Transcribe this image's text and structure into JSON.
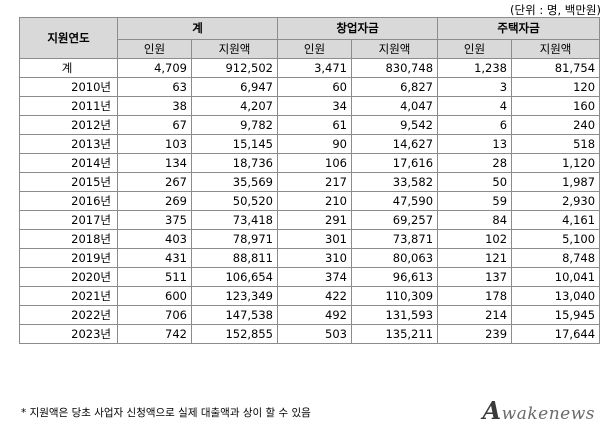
{
  "unit_note": "(단위 : 명, 백만원)",
  "header": {
    "year_col": "지원연도",
    "groups": [
      "계",
      "창업자금",
      "주택자금"
    ],
    "sub": [
      "인원",
      "지원액"
    ]
  },
  "rows": [
    {
      "year": "계",
      "t_people": "4,709",
      "t_amount": "912,502",
      "s_people": "3,471",
      "s_amount": "830,748",
      "h_people": "1,238",
      "h_amount": "81,754"
    },
    {
      "year": "2010년",
      "t_people": "63",
      "t_amount": "6,947",
      "s_people": "60",
      "s_amount": "6,827",
      "h_people": "3",
      "h_amount": "120"
    },
    {
      "year": "2011년",
      "t_people": "38",
      "t_amount": "4,207",
      "s_people": "34",
      "s_amount": "4,047",
      "h_people": "4",
      "h_amount": "160"
    },
    {
      "year": "2012년",
      "t_people": "67",
      "t_amount": "9,782",
      "s_people": "61",
      "s_amount": "9,542",
      "h_people": "6",
      "h_amount": "240"
    },
    {
      "year": "2013년",
      "t_people": "103",
      "t_amount": "15,145",
      "s_people": "90",
      "s_amount": "14,627",
      "h_people": "13",
      "h_amount": "518"
    },
    {
      "year": "2014년",
      "t_people": "134",
      "t_amount": "18,736",
      "s_people": "106",
      "s_amount": "17,616",
      "h_people": "28",
      "h_amount": "1,120"
    },
    {
      "year": "2015년",
      "t_people": "267",
      "t_amount": "35,569",
      "s_people": "217",
      "s_amount": "33,582",
      "h_people": "50",
      "h_amount": "1,987"
    },
    {
      "year": "2016년",
      "t_people": "269",
      "t_amount": "50,520",
      "s_people": "210",
      "s_amount": "47,590",
      "h_people": "59",
      "h_amount": "2,930"
    },
    {
      "year": "2017년",
      "t_people": "375",
      "t_amount": "73,418",
      "s_people": "291",
      "s_amount": "69,257",
      "h_people": "84",
      "h_amount": "4,161"
    },
    {
      "year": "2018년",
      "t_people": "403",
      "t_amount": "78,971",
      "s_people": "301",
      "s_amount": "73,871",
      "h_people": "102",
      "h_amount": "5,100"
    },
    {
      "year": "2019년",
      "t_people": "431",
      "t_amount": "88,811",
      "s_people": "310",
      "s_amount": "80,063",
      "h_people": "121",
      "h_amount": "8,748"
    },
    {
      "year": "2020년",
      "t_people": "511",
      "t_amount": "106,654",
      "s_people": "374",
      "s_amount": "96,613",
      "h_people": "137",
      "h_amount": "10,041"
    },
    {
      "year": "2021년",
      "t_people": "600",
      "t_amount": "123,349",
      "s_people": "422",
      "s_amount": "110,309",
      "h_people": "178",
      "h_amount": "13,040"
    },
    {
      "year": "2022년",
      "t_people": "706",
      "t_amount": "147,538",
      "s_people": "492",
      "s_amount": "131,593",
      "h_people": "214",
      "h_amount": "15,945"
    },
    {
      "year": "2023년",
      "t_people": "742",
      "t_amount": "152,855",
      "s_people": "503",
      "s_amount": "135,211",
      "h_people": "239",
      "h_amount": "17,644"
    }
  ],
  "footnote": "* 지원액은 당초 사업자 신청액으로 실제 대출액과 상이 할 수 있음",
  "watermark": {
    "initial": "A",
    "rest": "wakenews"
  }
}
